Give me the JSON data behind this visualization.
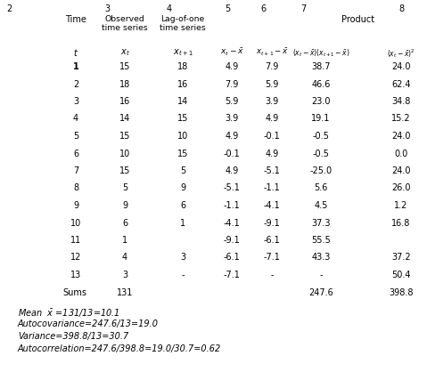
{
  "col_numbers": [
    "2",
    "3",
    "4",
    "5",
    "6",
    "7",
    "8"
  ],
  "data": [
    [
      "1",
      "15",
      "18",
      "4.9",
      "7.9",
      "38.7",
      "24.0"
    ],
    [
      "2",
      "18",
      "16",
      "7.9",
      "5.9",
      "46.6",
      "62.4"
    ],
    [
      "3",
      "16",
      "14",
      "5.9",
      "3.9",
      "23.0",
      "34.8"
    ],
    [
      "4",
      "14",
      "15",
      "3.9",
      "4.9",
      "19.1",
      "15.2"
    ],
    [
      "5",
      "15",
      "10",
      "4.9",
      "-0.1",
      "-0.5",
      "24.0"
    ],
    [
      "6",
      "10",
      "15",
      "-0.1",
      "4.9",
      "-0.5",
      "0.0"
    ],
    [
      "7",
      "15",
      "5",
      "4.9",
      "-5.1",
      "-25.0",
      "24.0"
    ],
    [
      "8",
      "5",
      "9",
      "-5.1",
      "-1.1",
      "5.6",
      "26.0"
    ],
    [
      "9",
      "9",
      "6",
      "-1.1",
      "-4.1",
      "4.5",
      "1.2"
    ],
    [
      "10",
      "6",
      "1",
      "-4.1",
      "-9.1",
      "37.3",
      "16.8"
    ],
    [
      "11",
      "1",
      "",
      "-9.1",
      "-6.1",
      "55.5",
      ""
    ],
    [
      "12",
      "4",
      "3",
      "-6.1",
      "-7.1",
      "43.3",
      "37.2"
    ],
    [
      "13",
      "3",
      "-",
      "-7.1",
      "-",
      "-",
      "50.4"
    ]
  ],
  "background_color": "#ffffff",
  "text_color": "#000000",
  "font_size": 7.0
}
